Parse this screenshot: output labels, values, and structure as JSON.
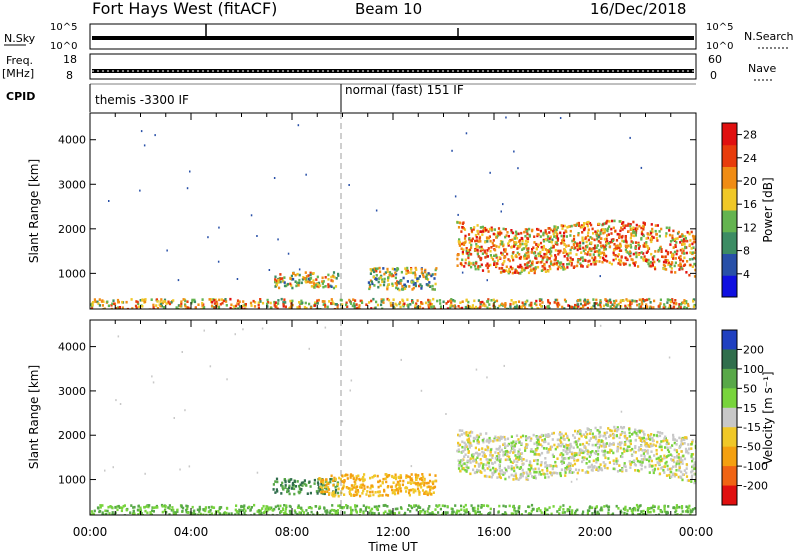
{
  "header": {
    "station": "Fort Hays West (fitACF)",
    "beam": "Beam 10",
    "date": "16/Dec/2018"
  },
  "top_panels": {
    "nsky_label": "N.Sky",
    "nsky_ticks": [
      "10^5",
      "10^0"
    ],
    "nsearch_label": "N.Search",
    "nsearch_ticks": [
      "10^5",
      "10^0"
    ],
    "freq_label": "Freq.",
    "freq_unit": "[MHz]",
    "freq_ticks": [
      "18",
      "8"
    ],
    "nave_label": "Nave",
    "nave_ticks": [
      "60",
      "0"
    ],
    "cpid_label": "CPID",
    "cpid_segments": [
      {
        "text": "themis -3300 IF",
        "start_hour": 0
      },
      {
        "text": "normal (fast) 151 IF",
        "start_hour": 10
      }
    ]
  },
  "x_axis": {
    "label": "Time UT",
    "ticks": [
      "00:00",
      "04:00",
      "08:00",
      "12:00",
      "16:00",
      "20:00",
      "00:00"
    ]
  },
  "chart_data": [
    {
      "type": "heatmap",
      "panel": "power",
      "ylabel": "Slant Range [km]",
      "y_ticks": [
        "1000",
        "2000",
        "3000",
        "4000"
      ],
      "ylim": [
        200,
        4600
      ],
      "xlim_hours": [
        0,
        24
      ],
      "colorbar_label": "Power [dB]",
      "colorbar_ticks": [
        "4",
        "8",
        "12",
        "16",
        "20",
        "24",
        "28"
      ],
      "colorbar_range": [
        0,
        30
      ],
      "colors": [
        "#1010e0",
        "#2850a8",
        "#3c8c64",
        "#64b450",
        "#f0c828",
        "#f08c14",
        "#e83c0c",
        "#e01010"
      ],
      "echo_regions": [
        {
          "t_start": 0,
          "t_end": 24,
          "r_low": 200,
          "r_high": 450,
          "level": 18
        },
        {
          "t_start": 7.2,
          "t_end": 9.8,
          "r_low": 700,
          "r_high": 1050,
          "level": 16
        },
        {
          "t_start": 11.0,
          "t_end": 13.7,
          "r_low": 650,
          "r_high": 1150,
          "level": 14
        },
        {
          "t_start": 14.5,
          "t_end": 24,
          "r_low": 1200,
          "r_high": 2200,
          "level": 20
        }
      ]
    },
    {
      "type": "heatmap",
      "panel": "velocity",
      "ylabel": "Slant Range [km]",
      "y_ticks": [
        "1000",
        "2000",
        "3000",
        "4000"
      ],
      "ylim": [
        200,
        4600
      ],
      "xlim_hours": [
        0,
        24
      ],
      "colorbar_label": "Velocity [m s⁻¹]",
      "colorbar_ticks": [
        "200",
        "100",
        "50",
        "15",
        "-15",
        "-50",
        "-100",
        "-200"
      ],
      "colors": [
        "#2040c0",
        "#306e4c",
        "#58a848",
        "#78d43c",
        "#c8c8c8",
        "#f0c828",
        "#f4a010",
        "#f06414",
        "#e01010"
      ],
      "echo_regions": [
        {
          "t_start": 0,
          "t_end": 24,
          "r_low": 200,
          "r_high": 450,
          "velocity": 50
        },
        {
          "t_start": 7.2,
          "t_end": 9.8,
          "r_low": 700,
          "r_high": 1050,
          "velocity": 100
        },
        {
          "t_start": 9.0,
          "t_end": 13.7,
          "r_low": 650,
          "r_high": 1150,
          "velocity": -50
        },
        {
          "t_start": 14.5,
          "t_end": 24,
          "r_low": 1200,
          "r_high": 2200,
          "velocity": 0
        }
      ]
    }
  ]
}
